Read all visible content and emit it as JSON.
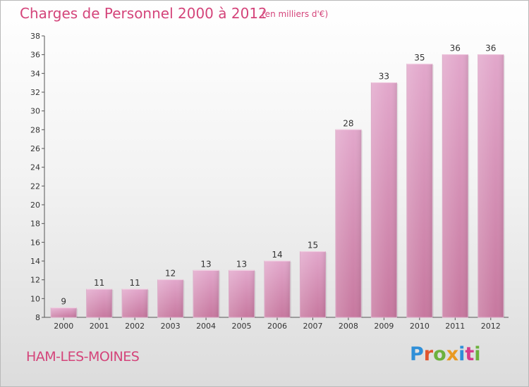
{
  "header": {
    "title": "Charges de Personnel 2000 à 2012",
    "subtitle": "(en milliers d'€)"
  },
  "footer": {
    "place": "HAM-LES-MOINES",
    "logo": "Proxiti",
    "logo_colors": [
      "#2f8fd8",
      "#e0542e",
      "#6cb13d",
      "#e99a22",
      "#2f8fd8",
      "#d63b8a",
      "#6cb13d"
    ]
  },
  "chart_data": {
    "type": "bar",
    "title": "Charges de Personnel 2000 à 2012",
    "subtitle": "(en milliers d'€)",
    "categories": [
      "2000",
      "2001",
      "2002",
      "2003",
      "2004",
      "2005",
      "2006",
      "2007",
      "2008",
      "2009",
      "2010",
      "2011",
      "2012"
    ],
    "values": [
      9,
      11,
      11,
      12,
      13,
      13,
      14,
      15,
      28,
      33,
      35,
      36,
      36
    ],
    "ylim": [
      8,
      38
    ],
    "yticks": [
      8,
      10,
      12,
      14,
      16,
      18,
      20,
      22,
      24,
      26,
      28,
      30,
      32,
      34,
      36,
      38
    ],
    "grid": false,
    "bar_color": "#c7789f",
    "bar_color_light": "#e2a7cb"
  }
}
